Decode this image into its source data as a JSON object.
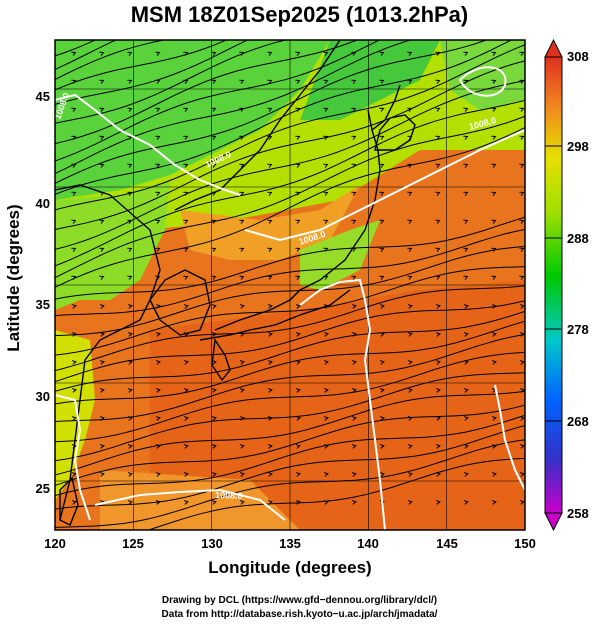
{
  "title": "MSM 18Z01Sep2025 (1013.2hPa)",
  "axes": {
    "xlabel": "Longitude (degrees)",
    "ylabel": "Latitude  (degrees)",
    "xlim": [
      120,
      150
    ],
    "ylim": [
      22.5,
      47.5
    ],
    "xticks": [
      "120",
      "125",
      "130",
      "135",
      "140",
      "145",
      "150"
    ],
    "yticks": [
      "25",
      "30",
      "35",
      "40",
      "45"
    ],
    "grid": true
  },
  "colorbar": {
    "ticks": [
      "308",
      "298",
      "288",
      "278",
      "268",
      "258"
    ],
    "range": [
      258,
      308
    ]
  },
  "contour_labels": [
    "1008.0",
    "1008.0",
    "1008.0",
    "1008.0",
    "1008.0"
  ],
  "credits": {
    "line1": "Drawing by DCL (https://www.gfd−dennou.org/library/dcl/)",
    "line2": "Data from http://database.rish.kyoto−u.ac.jp/arch/jmadata/"
  },
  "colors": {
    "warm": "#e8691e",
    "mid": "#c8e000",
    "cool": "#3cc83c",
    "contour": "#ffffff",
    "streamline": "#000000"
  }
}
